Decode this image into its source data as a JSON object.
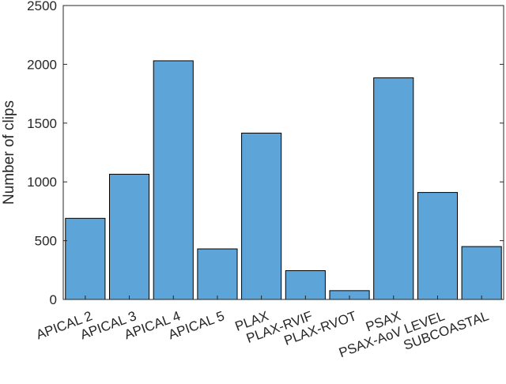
{
  "chart_data": {
    "type": "bar",
    "title": "",
    "xlabel": "",
    "ylabel": "Number of clips",
    "categories": [
      "APICAL 2",
      "APICAL 3",
      "APICAL 4",
      "APICAL 5",
      "PLAX",
      "PLAX-RVIF",
      "PLAX-RVOT",
      "PSAX",
      "PSAX-AoV LEVEL",
      "SUBCOASTAL"
    ],
    "values": [
      690,
      1065,
      2030,
      430,
      1415,
      245,
      75,
      1885,
      910,
      450
    ],
    "ylim": [
      0,
      2500
    ],
    "yticks": [
      0,
      500,
      1000,
      1500,
      2000,
      2500
    ],
    "grid": false,
    "legend": "none",
    "bar_color": "#5DA5D8",
    "bar_edge_color": "#000000"
  }
}
